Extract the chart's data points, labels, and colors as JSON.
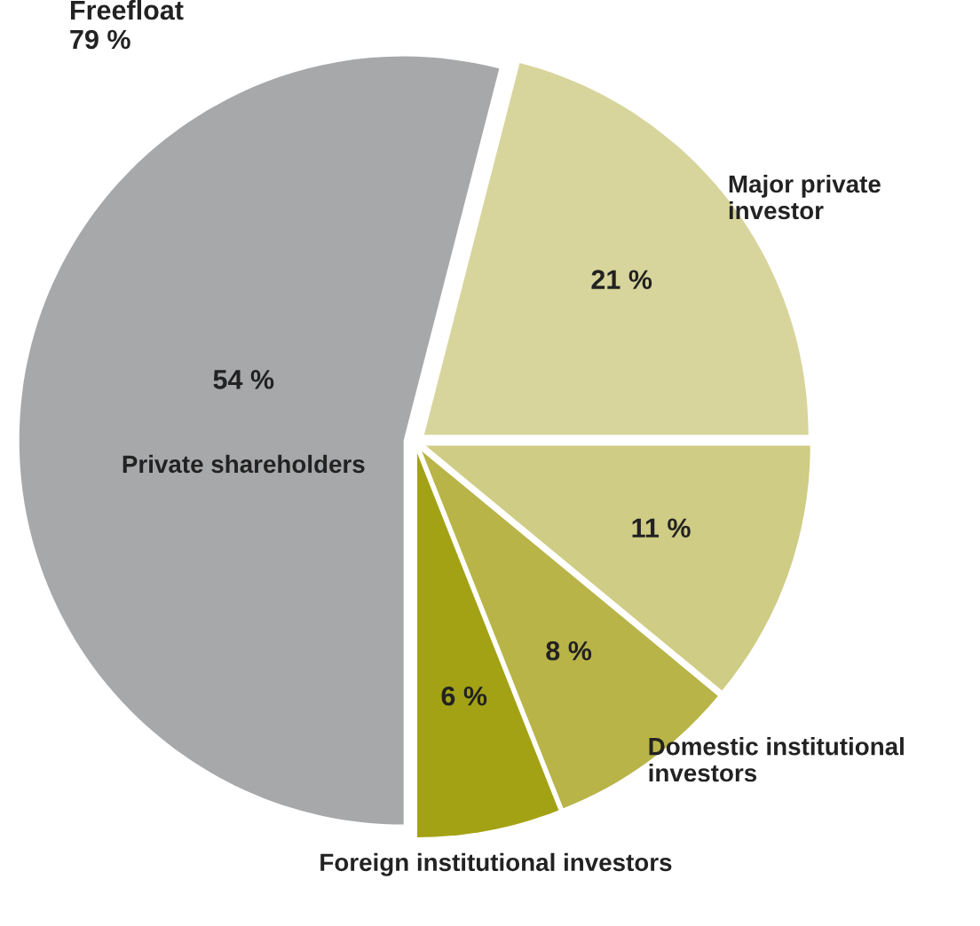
{
  "chart_data": {
    "type": "pie",
    "categories": [
      "Major private investor",
      null,
      "Domestic institutional investors",
      "Foreign institutional investors",
      "Private shareholders"
    ],
    "values": [
      21,
      11,
      8,
      6,
      54
    ],
    "value_labels": [
      "21 %",
      "11 %",
      "8 %",
      "6 %",
      "54 %"
    ],
    "colors": [
      "#d8d59c",
      "#cfcc85",
      "#b8b448",
      "#a3a215",
      "#a7a8aa"
    ],
    "annotations": [
      "Freefloat\n79 %"
    ],
    "legend": false
  }
}
